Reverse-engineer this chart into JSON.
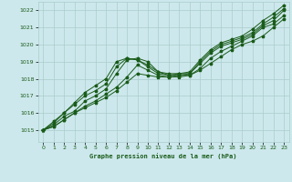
{
  "title": "Graphe pression niveau de la mer (hPa)",
  "background_color": "#cde8ec",
  "grid_color": "#aacccc",
  "line_color": "#1a5c1a",
  "text_color": "#1a5c1a",
  "xlim": [
    -0.5,
    23.5
  ],
  "ylim": [
    1014.3,
    1022.5
  ],
  "yticks": [
    1015,
    1016,
    1017,
    1018,
    1019,
    1020,
    1021,
    1022
  ],
  "xticks": [
    0,
    1,
    2,
    3,
    4,
    5,
    6,
    7,
    8,
    9,
    10,
    11,
    12,
    13,
    14,
    15,
    16,
    17,
    18,
    19,
    20,
    21,
    22,
    23
  ],
  "series": [
    [
      1015.0,
      1015.2,
      1015.6,
      1016.0,
      1016.3,
      1016.6,
      1016.9,
      1017.3,
      1017.8,
      1018.3,
      1018.2,
      1018.1,
      1018.1,
      1018.1,
      1018.2,
      1018.5,
      1018.9,
      1019.3,
      1019.7,
      1020.0,
      1020.2,
      1020.5,
      1021.0,
      1021.5
    ],
    [
      1015.0,
      1015.2,
      1015.6,
      1016.0,
      1016.4,
      1016.7,
      1017.1,
      1017.5,
      1018.1,
      1018.8,
      1018.5,
      1018.2,
      1018.1,
      1018.2,
      1018.2,
      1018.6,
      1019.2,
      1019.6,
      1019.9,
      1020.2,
      1020.5,
      1021.0,
      1021.2,
      1021.7
    ],
    [
      1015.0,
      1015.3,
      1015.8,
      1016.1,
      1016.7,
      1017.0,
      1017.4,
      1018.3,
      1019.1,
      1019.2,
      1019.0,
      1018.4,
      1018.2,
      1018.2,
      1018.3,
      1018.9,
      1019.5,
      1019.9,
      1020.1,
      1020.3,
      1020.6,
      1021.1,
      1021.4,
      1022.0
    ],
    [
      1015.0,
      1015.4,
      1016.0,
      1016.5,
      1017.0,
      1017.3,
      1017.7,
      1018.7,
      1019.2,
      1019.1,
      1018.7,
      1018.3,
      1018.2,
      1018.3,
      1018.3,
      1019.0,
      1019.6,
      1020.0,
      1020.2,
      1020.4,
      1020.7,
      1021.2,
      1021.6,
      1022.1
    ],
    [
      1015.0,
      1015.5,
      1016.0,
      1016.6,
      1017.2,
      1017.6,
      1018.0,
      1019.0,
      1019.2,
      1019.1,
      1018.8,
      1018.4,
      1018.3,
      1018.3,
      1018.4,
      1019.1,
      1019.7,
      1020.1,
      1020.3,
      1020.5,
      1020.9,
      1021.4,
      1021.8,
      1022.3
    ]
  ]
}
